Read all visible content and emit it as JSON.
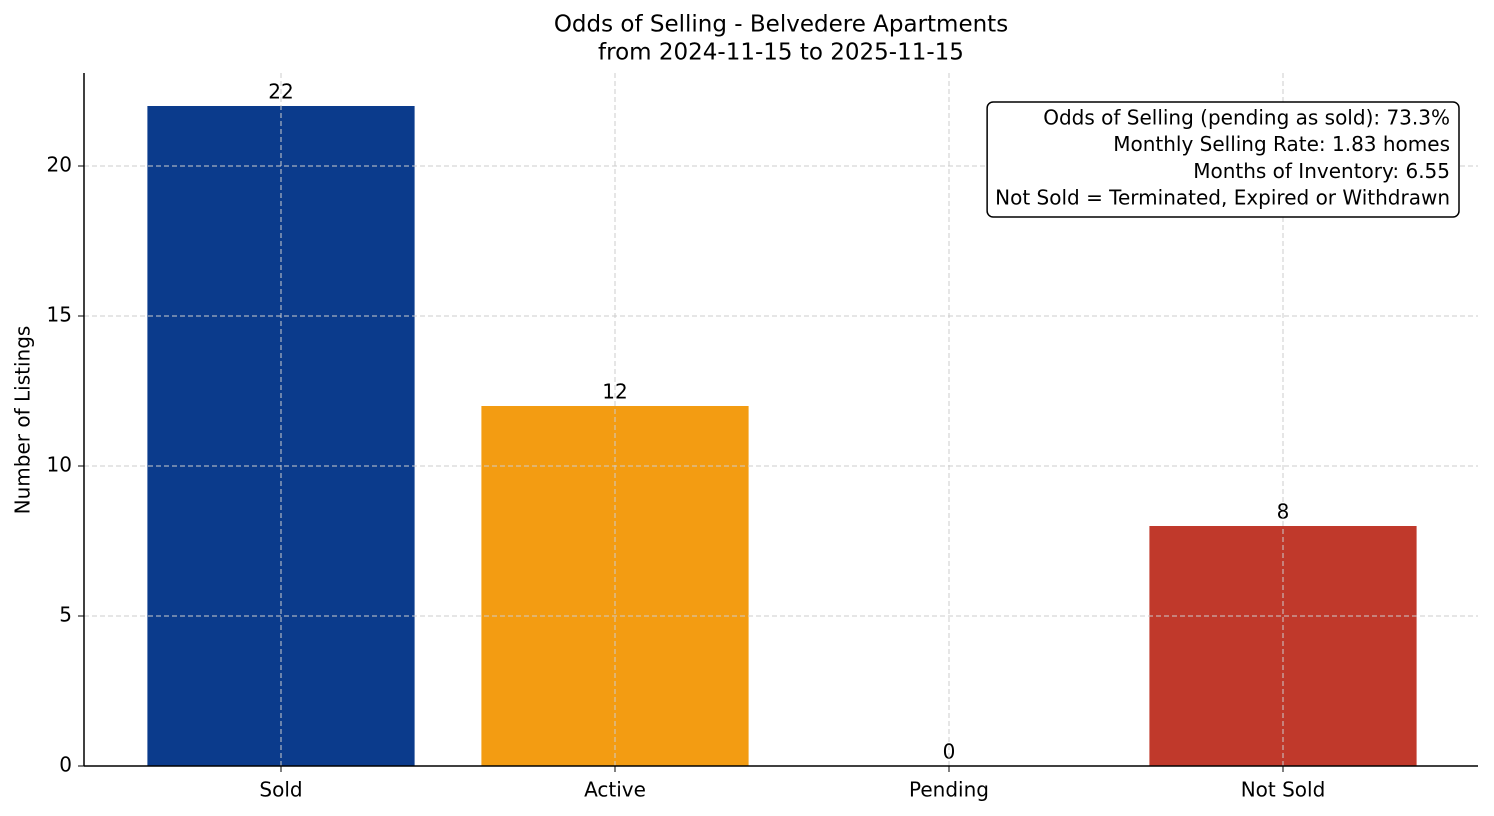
{
  "chart_data": {
    "type": "bar",
    "title": "Odds of Selling - Belvedere Apartments",
    "subtitle": "from 2024-11-15 to 2025-11-15",
    "y_label": "Number of Listings",
    "categories": [
      "Sold",
      "Active",
      "Pending",
      "Not Sold"
    ],
    "values": [
      22,
      12,
      0,
      8
    ],
    "colors": [
      "#0b3b8c",
      "#f39c12",
      "#16a085",
      "#c0392b"
    ],
    "ylim": [
      0,
      23.1
    ],
    "yticks": [
      0,
      5,
      10,
      15,
      20
    ],
    "grid": true,
    "annotation": [
      "Odds of Selling (pending as sold): 73.3%",
      "Monthly Selling Rate: 1.83 homes",
      "Months of Inventory: 6.55",
      "Not Sold = Terminated, Expired or Withdrawn"
    ],
    "annotation_corner": "upper right"
  }
}
